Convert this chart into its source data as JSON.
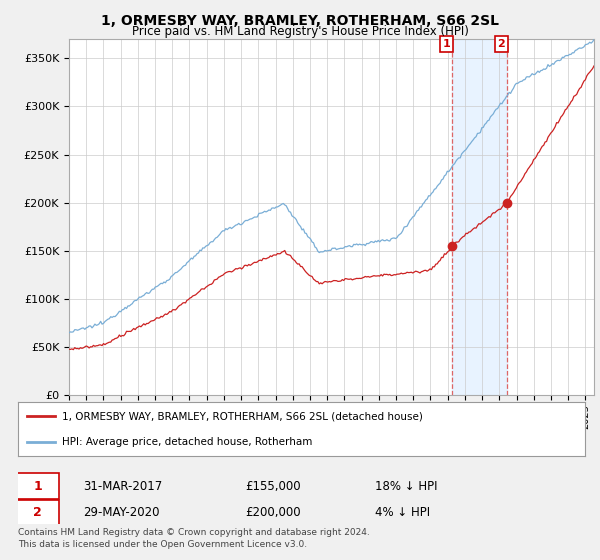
{
  "title": "1, ORMESBY WAY, BRAMLEY, ROTHERHAM, S66 2SL",
  "subtitle": "Price paid vs. HM Land Registry's House Price Index (HPI)",
  "ylabel_ticks": [
    "£0",
    "£50K",
    "£100K",
    "£150K",
    "£200K",
    "£250K",
    "£300K",
    "£350K"
  ],
  "ytick_vals": [
    0,
    50000,
    100000,
    150000,
    200000,
    250000,
    300000,
    350000
  ],
  "ylim": [
    0,
    370000
  ],
  "xlim_start": 1995.0,
  "xlim_end": 2025.5,
  "transaction1": {
    "date": "31-MAR-2017",
    "price": 155000,
    "pct": "18%",
    "year": 2017.25,
    "label": "1"
  },
  "transaction2": {
    "date": "29-MAY-2020",
    "price": 200000,
    "pct": "4%",
    "label": "2",
    "year": 2020.42
  },
  "shade_start": 2017.25,
  "shade_end": 2020.42,
  "legend_line1": "1, ORMESBY WAY, BRAMLEY, ROTHERHAM, S66 2SL (detached house)",
  "legend_line2": "HPI: Average price, detached house, Rotherham",
  "footer1": "Contains HM Land Registry data © Crown copyright and database right 2024.",
  "footer2": "This data is licensed under the Open Government Licence v3.0.",
  "red_color": "#cc2222",
  "blue_color": "#7aaed6",
  "shade_color": "#ddeeff",
  "background_color": "#f0f0f0",
  "plot_bg": "#ffffff"
}
